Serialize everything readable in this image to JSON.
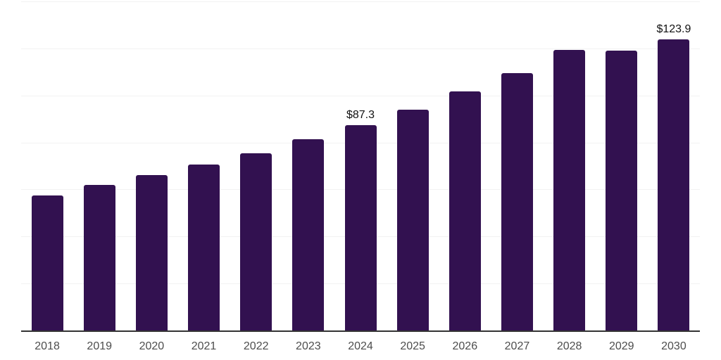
{
  "chart_data": {
    "type": "bar",
    "title": "",
    "xlabel": "",
    "ylabel": "",
    "categories": [
      "2018",
      "2019",
      "2020",
      "2021",
      "2022",
      "2023",
      "2024",
      "2025",
      "2026",
      "2027",
      "2028",
      "2029",
      "2030"
    ],
    "values": [
      57.4,
      62.0,
      66.2,
      70.6,
      75.5,
      81.3,
      87.3,
      94.0,
      101.6,
      109.5,
      119.4,
      119.0,
      123.9
    ],
    "annotations": [
      {
        "category": "2024",
        "label": "$87.3"
      },
      {
        "category": "2030",
        "label": "$123.9"
      }
    ],
    "ylim": [
      0,
      140
    ],
    "gridline_step": 20,
    "grid": "horizontal",
    "legend": "none",
    "colors": {
      "bar": "#321150",
      "gridline": "#f2f2f2",
      "axis_line": "#333333",
      "tick_label": "#4d4d4d",
      "value_label": "#111111",
      "background": "#ffffff"
    }
  }
}
